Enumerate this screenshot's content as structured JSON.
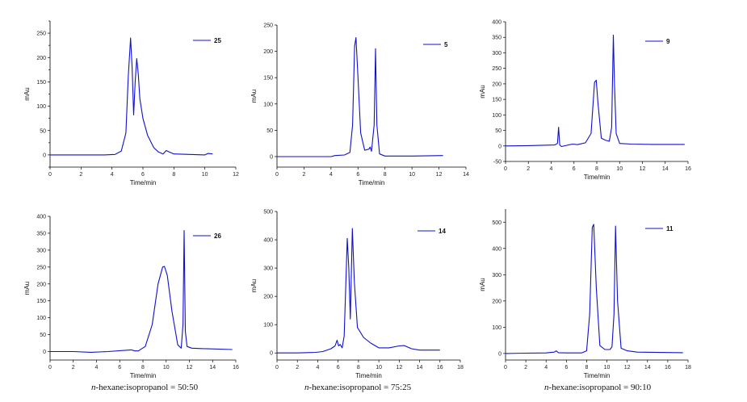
{
  "chart_data": [
    {
      "type": "line",
      "xlabel": "Time/min",
      "ylabel": "mAu",
      "xlim": [
        0,
        12
      ],
      "ylim": [
        -25,
        275
      ],
      "xticks": [
        0,
        2,
        4,
        6,
        8,
        10,
        12
      ],
      "yticks": [
        -25,
        0,
        25,
        50,
        75,
        100,
        125,
        150,
        175,
        200,
        225,
        250,
        275
      ],
      "yticklabels": [
        "",
        "0",
        "",
        "50",
        "",
        "100",
        "",
        "150",
        "",
        "200",
        "",
        "250",
        ""
      ],
      "legend": "top-right",
      "series": [
        {
          "name": "25",
          "color": "#1010cc",
          "x": [
            0,
            2,
            3.5,
            4.2,
            4.6,
            4.9,
            5.05,
            5.2,
            5.3,
            5.4,
            5.5,
            5.6,
            5.7,
            5.8,
            6.0,
            6.3,
            6.7,
            7.0,
            7.3,
            7.5,
            7.7,
            8.0,
            9.0,
            10.0,
            10.2,
            10.5
          ],
          "y": [
            0,
            0,
            0,
            1,
            8,
            45,
            160,
            240,
            180,
            82,
            150,
            198,
            165,
            115,
            75,
            40,
            15,
            6,
            2,
            9,
            6,
            2,
            1,
            0,
            3,
            2
          ]
        }
      ]
    },
    {
      "type": "line",
      "xlabel": "Time/min",
      "ylabel": "mAu",
      "xlim": [
        0,
        14
      ],
      "ylim": [
        -20,
        250
      ],
      "xticks": [
        0,
        2,
        4,
        6,
        8,
        10,
        12,
        14
      ],
      "yticks": [
        0,
        50,
        100,
        150,
        200,
        250
      ],
      "yticklabels": [
        "0",
        "50",
        "100",
        "150",
        "200",
        "250"
      ],
      "legend": "top-right",
      "series": [
        {
          "name": "5",
          "color": "#1010cc",
          "x": [
            0,
            4,
            4.3,
            5.0,
            5.4,
            5.6,
            5.75,
            5.85,
            6.0,
            6.2,
            6.5,
            6.8,
            6.9,
            7.0,
            7.2,
            7.3,
            7.4,
            7.6,
            8,
            10,
            12.3
          ],
          "y": [
            0,
            0,
            2,
            3,
            8,
            60,
            210,
            226,
            150,
            45,
            12,
            14,
            18,
            10,
            60,
            205,
            60,
            5,
            1,
            1,
            2
          ]
        }
      ]
    },
    {
      "type": "line",
      "xlabel": "Time/min",
      "ylabel": "mAu",
      "xlim": [
        0,
        16
      ],
      "ylim": [
        -50,
        400
      ],
      "xticks": [
        0,
        2,
        4,
        6,
        8,
        10,
        12,
        14,
        16
      ],
      "yticks": [
        -50,
        0,
        50,
        100,
        150,
        200,
        250,
        300,
        350,
        400
      ],
      "yticklabels": [
        "-50",
        "0",
        "50",
        "100",
        "150",
        "200",
        "250",
        "300",
        "350",
        "400"
      ],
      "legend": "top-right",
      "series": [
        {
          "name": "9",
          "color": "#1010cc",
          "x": [
            0,
            2,
            4.3,
            4.55,
            4.65,
            4.75,
            4.9,
            5.5,
            5.9,
            6.3,
            7.0,
            7.5,
            7.8,
            7.95,
            8.1,
            8.4,
            8.8,
            9.1,
            9.3,
            9.45,
            9.55,
            9.7,
            10.0,
            11,
            13,
            15.7
          ],
          "y": [
            0,
            1,
            3,
            8,
            60,
            3,
            -2,
            3,
            6,
            4,
            10,
            40,
            205,
            212,
            140,
            25,
            18,
            15,
            60,
            357,
            200,
            40,
            8,
            6,
            5,
            5
          ]
        }
      ]
    },
    {
      "type": "line",
      "xlabel": "Time/min",
      "ylabel": "mAu",
      "xlim": [
        0,
        16
      ],
      "ylim": [
        -25,
        400
      ],
      "xticks": [
        0,
        2,
        4,
        6,
        8,
        10,
        12,
        14,
        16
      ],
      "yticks": [
        0,
        50,
        100,
        150,
        200,
        250,
        300,
        350,
        400
      ],
      "yticklabels": [
        "0",
        "50",
        "100",
        "150",
        "200",
        "250",
        "300",
        "350",
        "400"
      ],
      "legend": "top-right",
      "series": [
        {
          "name": "26",
          "color": "#1010cc",
          "x": [
            0,
            2,
            3.5,
            5,
            7,
            7.3,
            7.6,
            8.2,
            8.8,
            9.3,
            9.7,
            9.85,
            10.1,
            10.5,
            11.0,
            11.3,
            11.45,
            11.55,
            11.65,
            11.8,
            12.2,
            13,
            15.7
          ],
          "y": [
            0,
            0,
            -2,
            0,
            5,
            2,
            2,
            15,
            80,
            200,
            250,
            252,
            225,
            120,
            20,
            10,
            80,
            358,
            60,
            15,
            10,
            9,
            6
          ]
        }
      ]
    },
    {
      "type": "line",
      "xlabel": "Time/min",
      "ylabel": "mAu",
      "xlim": [
        0,
        18
      ],
      "ylim": [
        -25,
        500
      ],
      "xticks": [
        0,
        2,
        4,
        6,
        8,
        10,
        12,
        14,
        16,
        18
      ],
      "yticks": [
        0,
        100,
        200,
        300,
        400,
        500
      ],
      "yticklabels": [
        "0",
        "100",
        "200",
        "300",
        "400",
        "500"
      ],
      "legend": "top-right",
      "series": [
        {
          "name": "14",
          "color": "#1010cc",
          "x": [
            0,
            2,
            3.8,
            4.5,
            5.3,
            5.7,
            5.9,
            6.05,
            6.2,
            6.4,
            6.6,
            6.9,
            7.05,
            7.2,
            7.4,
            7.6,
            7.9,
            8.5,
            9.2,
            10,
            11,
            12,
            12.5,
            13.2,
            14,
            16
          ],
          "y": [
            0,
            0,
            2,
            5,
            15,
            25,
            45,
            25,
            30,
            18,
            60,
            405,
            300,
            120,
            440,
            250,
            90,
            55,
            35,
            18,
            18,
            25,
            26,
            15,
            10,
            10
          ]
        }
      ]
    },
    {
      "type": "line",
      "xlabel": "Time/min",
      "ylabel": "mAu",
      "xlim": [
        0,
        18
      ],
      "ylim": [
        -25,
        550
      ],
      "xticks": [
        0,
        2,
        4,
        6,
        8,
        10,
        12,
        14,
        16,
        18
      ],
      "yticks": [
        0,
        100,
        200,
        300,
        400,
        500
      ],
      "yticklabels": [
        "0",
        "100",
        "200",
        "300",
        "400",
        "500"
      ],
      "legend": "top-right",
      "series": [
        {
          "name": "11",
          "color": "#1010cc",
          "x": [
            0,
            2,
            4,
            4.8,
            5.0,
            5.2,
            6,
            7.5,
            8.0,
            8.3,
            8.55,
            8.7,
            8.95,
            9.3,
            9.8,
            10.3,
            10.5,
            10.7,
            10.85,
            11.05,
            11.4,
            12,
            13,
            17.5
          ],
          "y": [
            0,
            1,
            2,
            5,
            10,
            3,
            2,
            2,
            10,
            150,
            480,
            492,
            250,
            30,
            15,
            15,
            25,
            150,
            485,
            200,
            20,
            10,
            5,
            3
          ]
        }
      ]
    }
  ],
  "captions": [
    {
      "italic": "n",
      "text": "-hexane:isopropanol = 50:50"
    },
    {
      "italic": "n",
      "text": "-hexane:isopropanol = 75:25"
    },
    {
      "italic": "n",
      "text": "-hexane:isopropanol = 90:10"
    }
  ]
}
